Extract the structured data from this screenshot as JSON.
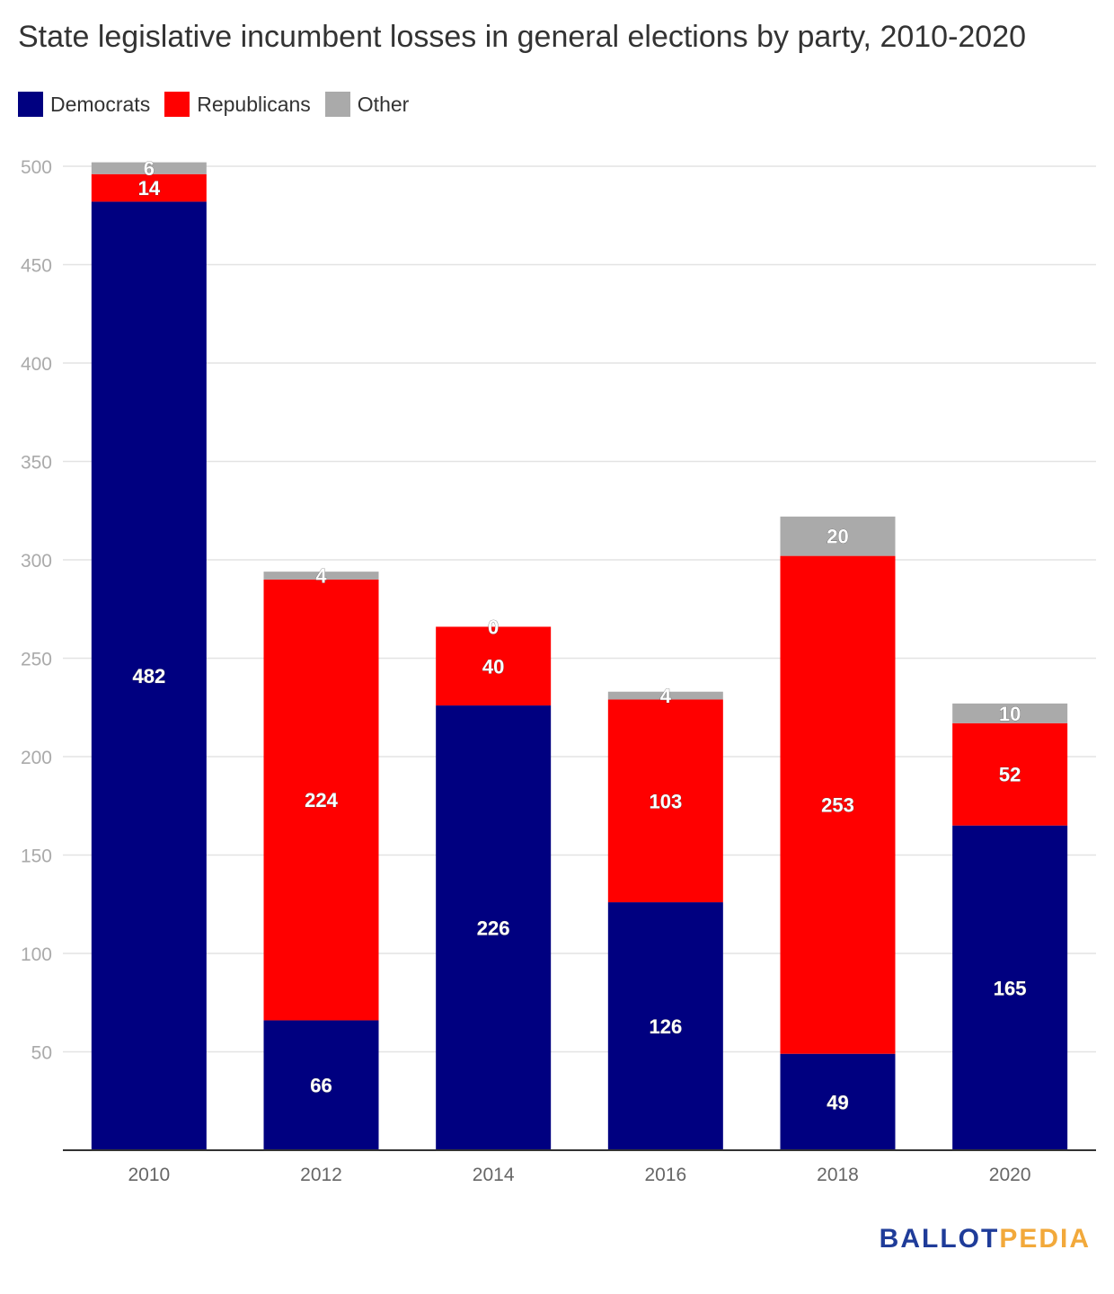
{
  "title": "State legislative incumbent losses in general elections by party, 2010-2020",
  "legend": [
    {
      "label": "Democrats",
      "color": "#000080"
    },
    {
      "label": "Republicans",
      "color": "#ff0000"
    },
    {
      "label": "Other",
      "color": "#aaaaaa"
    }
  ],
  "logo": {
    "part1": "BALLOT",
    "part2": "PEDIA"
  },
  "chart_data": {
    "type": "bar",
    "stacked": true,
    "title": "State legislative incumbent losses in general elections by party, 2010-2020",
    "categories": [
      "2010",
      "2012",
      "2014",
      "2016",
      "2018",
      "2020"
    ],
    "series": [
      {
        "name": "Democrats",
        "color": "#000080",
        "values": [
          482,
          66,
          226,
          126,
          49,
          165
        ]
      },
      {
        "name": "Republicans",
        "color": "#ff0000",
        "values": [
          14,
          224,
          40,
          103,
          253,
          52
        ]
      },
      {
        "name": "Other",
        "color": "#aaaaaa",
        "values": [
          6,
          4,
          0,
          4,
          20,
          10
        ]
      }
    ],
    "yticks": [
      50,
      100,
      150,
      200,
      250,
      300,
      350,
      400,
      450,
      500
    ],
    "ylim": [
      0,
      500
    ],
    "xlabel": "",
    "ylabel": "",
    "grid": true,
    "legend_position": "top-left"
  }
}
